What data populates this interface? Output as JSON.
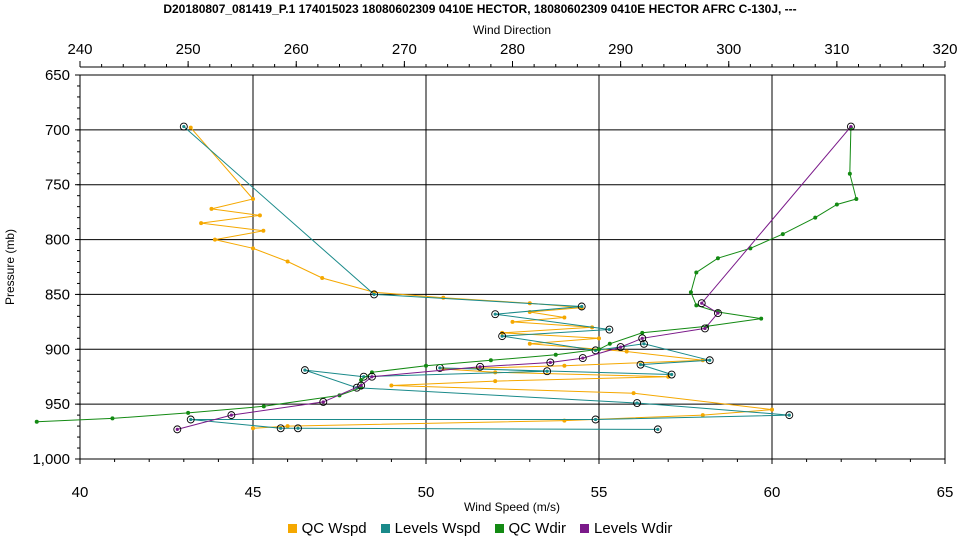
{
  "chart_data": {
    "type": "line",
    "title": "D20180807_081419_P.1 174015023 18080602309 0410E HECTOR, 18080602309 0410E HECTOR AFRC C-130J, ---",
    "x_bottom": {
      "label": "Wind Speed (m/s)",
      "range": [
        40,
        65
      ],
      "ticks": [
        "40",
        "45",
        "50",
        "55",
        "60",
        "65"
      ]
    },
    "x_top": {
      "label": "Wind Direction",
      "range": [
        240,
        320
      ],
      "ticks": [
        "240",
        "250",
        "260",
        "270",
        "280",
        "290",
        "300",
        "310",
        "320"
      ]
    },
    "y": {
      "label": "Pressure (mb)",
      "range": [
        650,
        1000
      ],
      "inverted": true,
      "ticks": [
        "650",
        "700",
        "750",
        "800",
        "850",
        "900",
        "950",
        "1,000"
      ]
    },
    "grid": true,
    "legend_position": "bottom",
    "series": [
      {
        "name": "QC Wspd",
        "axis": "bottom",
        "color": "#F5A800",
        "marker": "dot",
        "points": [
          [
            43.2,
            698
          ],
          [
            45.0,
            763
          ],
          [
            43.8,
            772
          ],
          [
            45.2,
            778
          ],
          [
            43.5,
            785
          ],
          [
            45.3,
            792
          ],
          [
            43.9,
            800
          ],
          [
            45.0,
            808
          ],
          [
            46.0,
            820
          ],
          [
            47.0,
            835
          ],
          [
            48.5,
            848
          ],
          [
            50.5,
            853
          ],
          [
            53.0,
            858
          ],
          [
            54.5,
            862
          ],
          [
            53.0,
            866
          ],
          [
            54.0,
            871
          ],
          [
            52.5,
            875
          ],
          [
            54.8,
            880
          ],
          [
            52.2,
            885
          ],
          [
            55.0,
            890
          ],
          [
            53.0,
            895
          ],
          [
            55.8,
            902
          ],
          [
            58.0,
            910
          ],
          [
            54.0,
            915
          ],
          [
            50.5,
            918
          ],
          [
            52.0,
            921
          ],
          [
            57.0,
            925
          ],
          [
            52.0,
            929
          ],
          [
            49.0,
            933
          ],
          [
            56.0,
            940
          ],
          [
            60.0,
            955
          ],
          [
            58.0,
            960
          ],
          [
            54.0,
            965
          ],
          [
            46.0,
            970
          ],
          [
            45.0,
            972
          ]
        ]
      },
      {
        "name": "Levels Wspd",
        "axis": "bottom",
        "color": "#1A8A8A",
        "marker": "circle",
        "points": [
          [
            43.0,
            697
          ],
          [
            48.5,
            850
          ],
          [
            54.5,
            861
          ],
          [
            52.0,
            868
          ],
          [
            55.3,
            882
          ],
          [
            52.2,
            888
          ],
          [
            54.9,
            901
          ],
          [
            56.3,
            895
          ],
          [
            58.2,
            910
          ],
          [
            56.2,
            914
          ],
          [
            57.1,
            923
          ],
          [
            50.4,
            917
          ],
          [
            53.5,
            920
          ],
          [
            48.2,
            925
          ],
          [
            46.5,
            919
          ],
          [
            48.0,
            935
          ],
          [
            56.1,
            949
          ],
          [
            60.5,
            960
          ],
          [
            54.9,
            964
          ],
          [
            43.2,
            964
          ],
          [
            45.8,
            972
          ],
          [
            46.3,
            972
          ],
          [
            56.7,
            973
          ]
        ]
      },
      {
        "name": "QC Wdir",
        "axis": "top",
        "color": "#138A13",
        "marker": "dot",
        "points": [
          [
            311.3,
            698
          ],
          [
            311.2,
            740
          ],
          [
            311.8,
            763
          ],
          [
            310.0,
            768
          ],
          [
            308.0,
            780
          ],
          [
            305.0,
            795
          ],
          [
            302.0,
            808
          ],
          [
            299.0,
            817
          ],
          [
            297.0,
            830
          ],
          [
            296.5,
            848
          ],
          [
            297.0,
            860
          ],
          [
            299.0,
            866
          ],
          [
            303.0,
            872
          ],
          [
            298.0,
            879
          ],
          [
            292.0,
            885
          ],
          [
            289.0,
            895
          ],
          [
            288.0,
            900
          ],
          [
            284.0,
            905
          ],
          [
            278.0,
            910
          ],
          [
            272.0,
            915
          ],
          [
            267.0,
            921
          ],
          [
            266.0,
            928
          ],
          [
            266.0,
            935
          ],
          [
            264.0,
            942
          ],
          [
            257.0,
            952
          ],
          [
            250.0,
            958
          ],
          [
            243.0,
            963
          ],
          [
            236.0,
            966
          ]
        ]
      },
      {
        "name": "Levels Wdir",
        "axis": "top",
        "color": "#7B1A8A",
        "marker": "circle",
        "points": [
          [
            311.3,
            697
          ],
          [
            297.5,
            858
          ],
          [
            299.0,
            867
          ],
          [
            297.8,
            881
          ],
          [
            292.0,
            890
          ],
          [
            290.0,
            898
          ],
          [
            286.5,
            908
          ],
          [
            283.5,
            912
          ],
          [
            277.0,
            916
          ],
          [
            267.0,
            925
          ],
          [
            266.0,
            933
          ],
          [
            262.5,
            948
          ],
          [
            254.0,
            960
          ],
          [
            249.0,
            973
          ]
        ]
      }
    ]
  }
}
